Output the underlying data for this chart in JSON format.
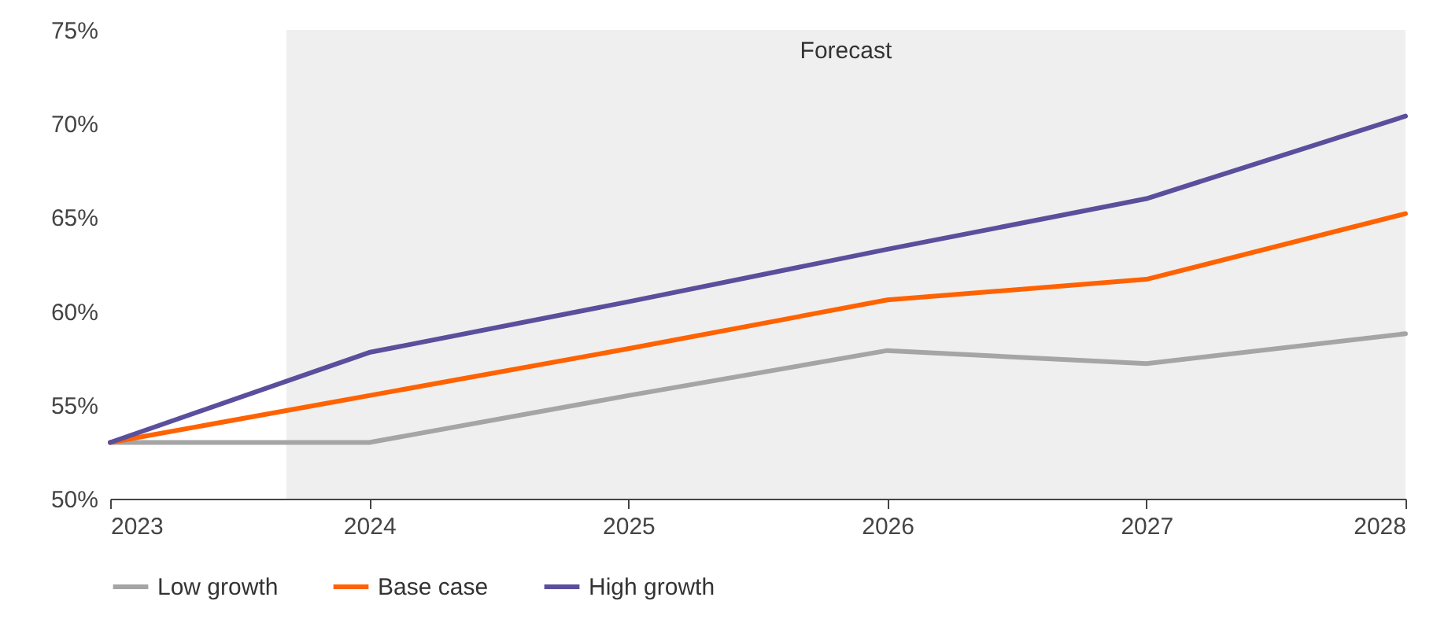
{
  "chart_data": {
    "type": "line",
    "x": [
      2023,
      2024,
      2025,
      2026,
      2027,
      2028
    ],
    "series": [
      {
        "name": "Low growth",
        "color": "#a5a5a5",
        "values": [
          53.0,
          53.0,
          55.5,
          57.9,
          57.2,
          58.8
        ]
      },
      {
        "name": "Base case",
        "color": "#ff6200",
        "values": [
          53.0,
          55.5,
          58.0,
          60.6,
          61.7,
          65.2
        ]
      },
      {
        "name": "High growth",
        "color": "#5a4f9c",
        "values": [
          53.0,
          57.8,
          60.5,
          63.3,
          66.0,
          70.4
        ]
      }
    ],
    "xlim": [
      2023,
      2028
    ],
    "xticks": [
      2023,
      2024,
      2025,
      2026,
      2027,
      2028
    ],
    "ylim": [
      50,
      75
    ],
    "yticks": [
      {
        "value": 50,
        "label": "50%"
      },
      {
        "value": 55,
        "label": "55%"
      },
      {
        "value": 60,
        "label": "60%"
      },
      {
        "value": 65,
        "label": "65%"
      },
      {
        "value": 70,
        "label": "70%"
      },
      {
        "value": 75,
        "label": "75%"
      }
    ],
    "bands": [
      {
        "axis": "x",
        "from": 2023.68,
        "to": 2028,
        "label": "Forecast",
        "color": "#efefef"
      }
    ],
    "legend": "bottom",
    "grid": false,
    "line_style": "solid",
    "marker": "none"
  }
}
